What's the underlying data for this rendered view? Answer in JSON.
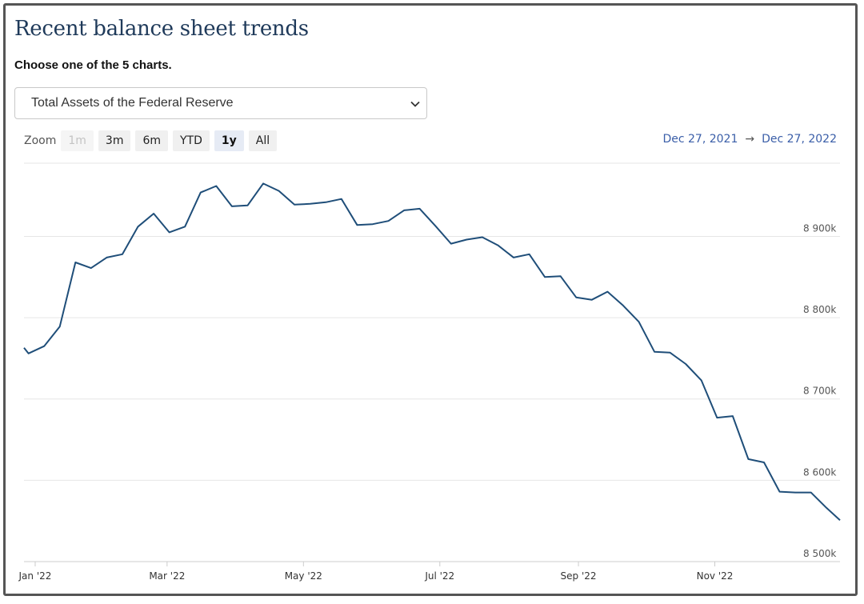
{
  "header": {
    "title": "Recent balance sheet trends",
    "prompt": "Choose one of the 5 charts."
  },
  "selector": {
    "value": "Total Assets of the Federal Reserve",
    "icon": "chevron-down-icon"
  },
  "zoom": {
    "label": "Zoom",
    "buttons": [
      "1m",
      "3m",
      "6m",
      "YTD",
      "1y",
      "All"
    ],
    "selected": "1y",
    "disabled": [
      "1m"
    ]
  },
  "range": {
    "start": "Dec 27, 2021",
    "arrow": "→",
    "end": "Dec 27, 2022"
  },
  "colors": {
    "line": "#1f4e79",
    "grid": "#e6e6e6",
    "link": "#3a5ea8",
    "title": "#1f3a5a"
  },
  "chart_data": {
    "type": "line",
    "title": "",
    "xlabel": "",
    "ylabel": "",
    "ylim": [
      8500000,
      8990000
    ],
    "yticks": [
      8500000,
      8600000,
      8700000,
      8800000,
      8900000
    ],
    "ytick_labels": [
      "8 500k",
      "8 600k",
      "8 700k",
      "8 800k",
      "8 900k"
    ],
    "xlim": [
      "2021-12-27",
      "2022-12-27"
    ],
    "xticks": [
      "2022-01-01",
      "2022-03-01",
      "2022-05-01",
      "2022-07-01",
      "2022-09-01",
      "2022-11-01"
    ],
    "xtick_labels": [
      "Jan '22",
      "Mar '22",
      "May '22",
      "Jul '22",
      "Sep '22",
      "Nov '22"
    ],
    "grid": true,
    "series": [
      {
        "x": [
          "2021-12-27",
          "2021-12-29",
          "2022-01-05",
          "2022-01-12",
          "2022-01-19",
          "2022-01-26",
          "2022-02-02",
          "2022-02-09",
          "2022-02-16",
          "2022-02-23",
          "2022-03-02",
          "2022-03-09",
          "2022-03-16",
          "2022-03-23",
          "2022-03-30",
          "2022-04-06",
          "2022-04-13",
          "2022-04-20",
          "2022-04-27",
          "2022-05-04",
          "2022-05-11",
          "2022-05-18",
          "2022-05-25",
          "2022-06-01",
          "2022-06-08",
          "2022-06-15",
          "2022-06-22",
          "2022-06-29",
          "2022-07-06",
          "2022-07-13",
          "2022-07-20",
          "2022-07-27",
          "2022-08-03",
          "2022-08-10",
          "2022-08-17",
          "2022-08-24",
          "2022-08-31",
          "2022-09-07",
          "2022-09-14",
          "2022-09-21",
          "2022-09-28",
          "2022-10-05",
          "2022-10-12",
          "2022-10-19",
          "2022-10-26",
          "2022-11-02",
          "2022-11-09",
          "2022-11-16",
          "2022-11-23",
          "2022-11-30",
          "2022-12-07",
          "2022-12-14",
          "2022-12-21",
          "2022-12-27"
        ],
        "y": [
          8763000,
          8756000,
          8765000,
          8789000,
          8868000,
          8861000,
          8874000,
          8878000,
          8912000,
          8928000,
          8905000,
          8912000,
          8954000,
          8962000,
          8937000,
          8938000,
          8965000,
          8956000,
          8939000,
          8940000,
          8942000,
          8946000,
          8914000,
          8915000,
          8919000,
          8932000,
          8934000,
          8913000,
          8891000,
          8896000,
          8899000,
          8889000,
          8874000,
          8878000,
          8850000,
          8851000,
          8825000,
          8822000,
          8832000,
          8815000,
          8795000,
          8758000,
          8757000,
          8743000,
          8723000,
          8677000,
          8679000,
          8626000,
          8622000,
          8586000,
          8585000,
          8585000,
          8566000,
          8551000
        ]
      }
    ]
  }
}
